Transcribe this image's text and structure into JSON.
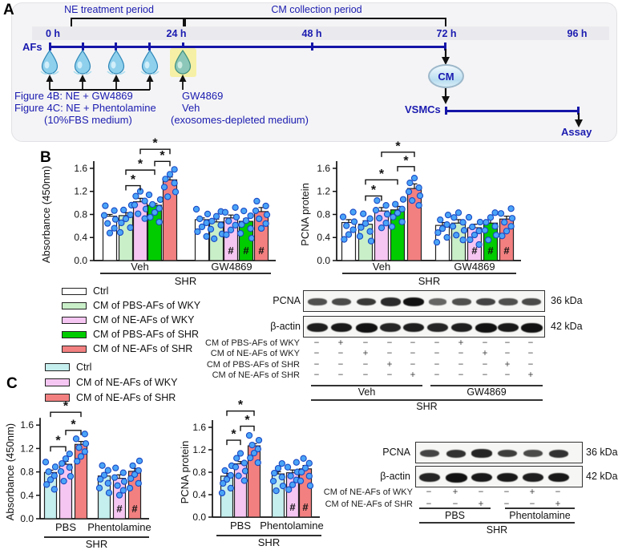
{
  "accent_color": "#1b1bb0",
  "panel_a": {
    "label": "A",
    "periods": [
      {
        "label": "NE treatment period"
      },
      {
        "label": "CM collection period"
      }
    ],
    "hours": [
      "0 h",
      "24 h",
      "48 h",
      "72 h",
      "96 h"
    ],
    "afs_label": "AFs",
    "cm_label": "CM",
    "vsmcs_label": "VSMCs",
    "assay_label": "Assay",
    "notes_left": [
      "Figure 4B: NE + GW4869",
      "Figure 4C: NE + Phentolamine",
      "(10%FBS medium)"
    ],
    "notes_mid": [
      "GW4869",
      "Veh",
      "(exosomes-depleted medium)"
    ],
    "drop_icon": "water-drop",
    "highlight_color": "#f6f0a6"
  },
  "panel_b": {
    "label": "B",
    "legend": [
      {
        "label": "Ctrl",
        "color": "#ffffff"
      },
      {
        "label": "CM of PBS-AFs of WKY",
        "color": "#c9efc9"
      },
      {
        "label": "CM of NE-AFs of WKY",
        "color": "#f6c6f2"
      },
      {
        "label": "CM of PBS-AFs of SHR",
        "color": "#00cc00"
      },
      {
        "label": "CM of NE-AFs of SHR",
        "color": "#f38080"
      }
    ]
  },
  "panel_c": {
    "label": "C",
    "legend": [
      {
        "label": "Ctrl",
        "color": "#c5eeee"
      },
      {
        "label": "CM of NE-AFs of WKY",
        "color": "#f6c6f2"
      },
      {
        "label": "CM of NE-AFs of SHR",
        "color": "#f38080"
      }
    ]
  },
  "chart_data": [
    {
      "id": "b-absorbance",
      "type": "bar",
      "ylabel": "Absorbance (450nm)",
      "ylim": [
        0,
        1.6
      ],
      "yticks": [
        0,
        0.4,
        0.8,
        1.2,
        1.6
      ],
      "groups": [
        "Veh",
        "GW4869"
      ],
      "outer_group_label": "SHR",
      "series": [
        {
          "name": "Ctrl",
          "color": "#ffffff"
        },
        {
          "name": "CM of PBS-AFs of WKY",
          "color": "#c9efc9"
        },
        {
          "name": "CM of NE-AFs of WKY",
          "color": "#f6c6f2"
        },
        {
          "name": "CM of PBS-AFs of SHR",
          "color": "#00cc00"
        },
        {
          "name": "CM of NE-AFs of SHR",
          "color": "#f38080"
        }
      ],
      "values": [
        [
          0.77,
          0.78,
          1.02,
          0.96,
          1.4
        ],
        [
          0.71,
          0.67,
          0.74,
          0.68,
          0.85
        ]
      ],
      "errors": [
        [
          0.03,
          0.05,
          0.06,
          0.03,
          0.05
        ],
        [
          0.03,
          0.05,
          0.05,
          0.05,
          0.07
        ]
      ],
      "hash_flags": [
        [
          false,
          false,
          false,
          false,
          false
        ],
        [
          false,
          false,
          true,
          true,
          true
        ]
      ],
      "hash_symbol": "#",
      "sig_brackets": [
        {
          "group": 0,
          "from": 1,
          "to": 2,
          "level": 1.3,
          "label": "*"
        },
        {
          "group": 0,
          "from": 1,
          "to": 3,
          "level": 1.57,
          "label": "*"
        },
        {
          "group": 0,
          "from": 3,
          "to": 4,
          "level": 1.72,
          "label": "*"
        },
        {
          "group": 0,
          "from": 2,
          "to": 4,
          "level": 1.93,
          "label": "*"
        }
      ],
      "points_per_bar": 7,
      "dot_color": "#4aa4f7",
      "dot_edge": "#1a49c4"
    },
    {
      "id": "b-pcna",
      "type": "bar",
      "ylabel": "PCNA protein",
      "ylim": [
        0,
        1.6
      ],
      "yticks": [
        0,
        0.4,
        0.8,
        1.2,
        1.6
      ],
      "groups": [
        "Veh",
        "GW4869"
      ],
      "outer_group_label": "SHR",
      "series": [
        {
          "name": "Ctrl",
          "color": "#ffffff"
        },
        {
          "name": "CM of PBS-AFs of WKY",
          "color": "#c9efc9"
        },
        {
          "name": "CM of NE-AFs of WKY",
          "color": "#f6c6f2"
        },
        {
          "name": "CM of PBS-AFs of SHR",
          "color": "#00cc00"
        },
        {
          "name": "CM of NE-AFs of SHR",
          "color": "#f38080"
        }
      ],
      "values": [
        [
          0.66,
          0.63,
          0.86,
          0.88,
          1.25
        ],
        [
          0.61,
          0.65,
          0.57,
          0.65,
          0.72
        ]
      ],
      "errors": [
        [
          0.05,
          0.06,
          0.06,
          0.06,
          0.08
        ],
        [
          0.05,
          0.06,
          0.06,
          0.07,
          0.05
        ]
      ],
      "hash_flags": [
        [
          false,
          false,
          false,
          false,
          false
        ],
        [
          false,
          false,
          true,
          true,
          true
        ]
      ],
      "hash_symbol": "#",
      "sig_brackets": [
        {
          "group": 0,
          "from": 1,
          "to": 2,
          "level": 1.12,
          "label": "*"
        },
        {
          "group": 0,
          "from": 1,
          "to": 3,
          "level": 1.4,
          "label": "*"
        },
        {
          "group": 0,
          "from": 3,
          "to": 4,
          "level": 1.63,
          "label": "*"
        },
        {
          "group": 0,
          "from": 2,
          "to": 4,
          "level": 1.88,
          "label": "*"
        }
      ],
      "points_per_bar": 7,
      "dot_color": "#4aa4f7",
      "dot_edge": "#1a49c4"
    },
    {
      "id": "c-absorbance",
      "type": "bar",
      "ylabel": "Absorbance (450nm)",
      "ylim": [
        0,
        1.6
      ],
      "yticks": [
        0,
        0.4,
        0.8,
        1.2,
        1.6
      ],
      "groups": [
        "PBS",
        "Phentolamine"
      ],
      "outer_group_label": "SHR",
      "series": [
        {
          "name": "Ctrl",
          "color": "#c5eeee"
        },
        {
          "name": "CM of NE-AFs of WKY",
          "color": "#f6c6f2"
        },
        {
          "name": "CM of NE-AFs of SHR",
          "color": "#f38080"
        }
      ],
      "values": [
        [
          0.79,
          0.93,
          1.27
        ],
        [
          0.73,
          0.69,
          0.81
        ]
      ],
      "errors": [
        [
          0.04,
          0.05,
          0.05
        ],
        [
          0.05,
          0.06,
          0.05
        ]
      ],
      "hash_flags": [
        [
          false,
          false,
          false
        ],
        [
          false,
          true,
          true
        ]
      ],
      "hash_symbol": "#",
      "sig_brackets": [
        {
          "group": 0,
          "from": 0,
          "to": 1,
          "level": 1.23,
          "label": "*"
        },
        {
          "group": 0,
          "from": 1,
          "to": 2,
          "level": 1.51,
          "label": "*"
        },
        {
          "group": 0,
          "from": 0,
          "to": 2,
          "level": 1.82,
          "label": "*"
        }
      ],
      "points_per_bar": 7,
      "dot_color": "#4aa4f7",
      "dot_edge": "#1a49c4"
    },
    {
      "id": "c-pcna",
      "type": "bar",
      "ylabel": "PCNA protein",
      "ylim": [
        0,
        1.6
      ],
      "yticks": [
        0,
        0.4,
        0.8,
        1.2,
        1.6
      ],
      "groups": [
        "PBS",
        "Phentolamine"
      ],
      "outer_group_label": "SHR",
      "series": [
        {
          "name": "Ctrl",
          "color": "#c5eeee"
        },
        {
          "name": "CM of NE-AFs of WKY",
          "color": "#f6c6f2"
        },
        {
          "name": "CM of NE-AFs of SHR",
          "color": "#f38080"
        }
      ],
      "values": [
        [
          0.73,
          0.95,
          1.27
        ],
        [
          0.77,
          0.79,
          0.86
        ]
      ],
      "errors": [
        [
          0.05,
          0.04,
          0.04
        ],
        [
          0.04,
          0.05,
          0.06
        ]
      ],
      "hash_flags": [
        [
          false,
          false,
          false
        ],
        [
          false,
          true,
          true
        ]
      ],
      "hash_symbol": "#",
      "sig_brackets": [
        {
          "group": 0,
          "from": 0,
          "to": 1,
          "level": 1.37,
          "label": "*"
        },
        {
          "group": 0,
          "from": 1,
          "to": 2,
          "level": 1.62,
          "label": "*"
        },
        {
          "group": 0,
          "from": 0,
          "to": 2,
          "level": 1.89,
          "label": "*"
        }
      ],
      "points_per_bar": 7,
      "dot_color": "#4aa4f7",
      "dot_edge": "#1a49c4"
    }
  ],
  "blot_b": {
    "protein_rows": [
      {
        "label": "PCNA",
        "kda": "36 kDa",
        "bands": [
          0.5,
          0.55,
          0.7,
          0.8,
          1.0,
          0.35,
          0.5,
          0.6,
          0.5,
          0.55
        ]
      },
      {
        "label": "β-actin",
        "kda": "42 kDa",
        "bands": [
          0.9,
          0.95,
          1,
          0.85,
          0.9,
          0.85,
          0.9,
          1,
          0.95,
          1
        ]
      }
    ],
    "condition_rows": [
      {
        "label": "CM of PBS-AFs of WKY",
        "signs": [
          "−",
          "+",
          "−",
          "−",
          "−",
          "−",
          "+",
          "−",
          "−",
          "−"
        ]
      },
      {
        "label": "CM of NE-AFs of WKY",
        "signs": [
          "−",
          "−",
          "+",
          "−",
          "−",
          "−",
          "−",
          "+",
          "−",
          "−"
        ]
      },
      {
        "label": "CM of PBS-AFs of SHR",
        "signs": [
          "−",
          "−",
          "−",
          "+",
          "−",
          "−",
          "−",
          "−",
          "+",
          "−"
        ]
      },
      {
        "label": "CM of NE-AFs of SHR",
        "signs": [
          "−",
          "−",
          "−",
          "−",
          "+",
          "−",
          "−",
          "−",
          "−",
          "+"
        ]
      }
    ],
    "group_labels": [
      "Veh",
      "GW4869"
    ],
    "strain_label": "SHR"
  },
  "blot_c": {
    "protein_rows": [
      {
        "label": "PCNA",
        "kda": "36 kDa",
        "bands": [
          0.6,
          0.75,
          0.85,
          0.65,
          0.55,
          0.75
        ]
      },
      {
        "label": "β-actin",
        "kda": "42 kDa",
        "bands": [
          0.85,
          1,
          0.95,
          0.95,
          0.9,
          0.95
        ]
      }
    ],
    "condition_rows": [
      {
        "label": "CM of NE-AFs of WKY",
        "signs": [
          "−",
          "+",
          "−",
          "−",
          "+",
          "−"
        ]
      },
      {
        "label": "CM of NE-AFs of SHR",
        "signs": [
          "−",
          "−",
          "+",
          "−",
          "−",
          "+"
        ]
      }
    ],
    "group_labels": [
      "PBS",
      "Phentolamine"
    ],
    "strain_label": "SHR"
  }
}
